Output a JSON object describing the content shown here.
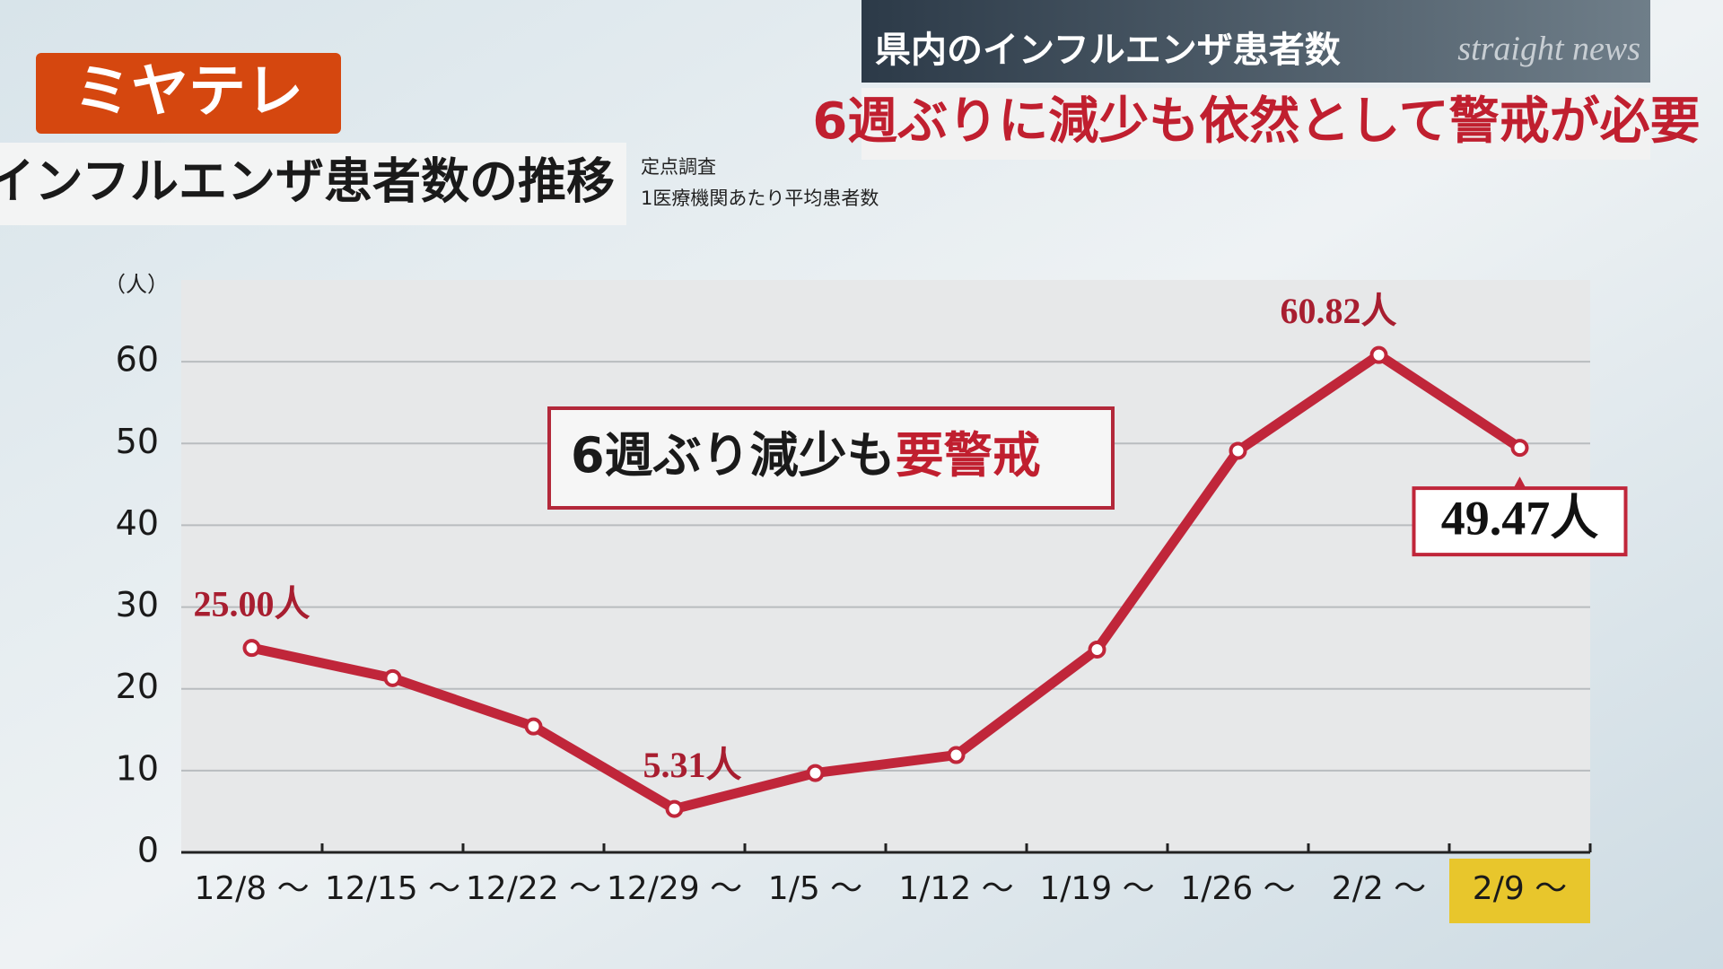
{
  "logo": "ミヤテレ",
  "header": {
    "topic": "県内のインフルエンザ患者数",
    "program": "straight news",
    "headline": "6週ぶりに減少も依然として警戒が必要"
  },
  "chart_data": {
    "type": "line",
    "title": "インフルエンザ患者数の推移",
    "subtitle": [
      "定点調査",
      "1医療機関あたり平均患者数"
    ],
    "y_label": "（人）",
    "annotation": [
      "6週ぶり減少も",
      "要警戒"
    ],
    "categories": [
      "12/8 ～",
      "12/15 ～",
      "12/22 ～",
      "12/29 ～",
      "1/5 ～",
      "1/12 ～",
      "1/19 ～",
      "1/26 ～",
      "2/2 ～",
      "2/9 ～"
    ],
    "highlight_category": 9,
    "series": [
      {
        "name": "1医療機関あたり平均患者数",
        "color": "#c0263a",
        "values": [
          25.0,
          21.3,
          15.4,
          5.31,
          9.7,
          11.9,
          24.8,
          49.1,
          60.82,
          49.47
        ],
        "value_labels": [
          "25.00人",
          null,
          null,
          "5.31人",
          null,
          null,
          null,
          null,
          "60.82人",
          "49.47人"
        ]
      }
    ],
    "ylim": [
      0,
      70
    ],
    "yticks": [
      0,
      10,
      20,
      30,
      40,
      50,
      60
    ],
    "grid": true
  }
}
